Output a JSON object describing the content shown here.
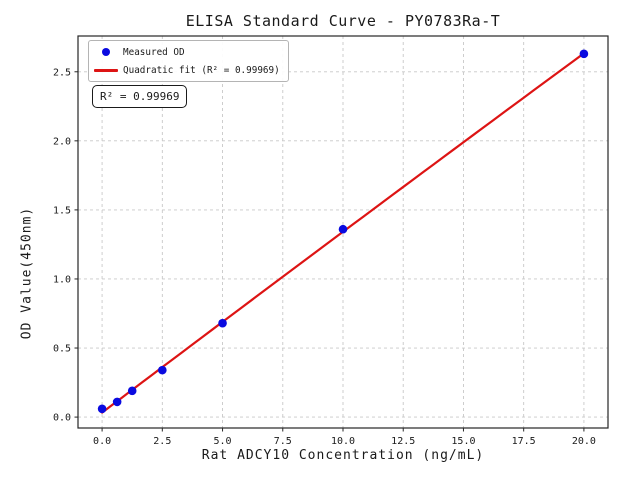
{
  "chart_data": {
    "type": "scatter",
    "title": "ELISA Standard Curve - PY0783Ra-T",
    "xlabel": "Rat ADCY10 Concentration (ng/mL)",
    "ylabel": "OD Value(450nm)",
    "annotation": "R² = 0.99969",
    "r_squared": 0.99969,
    "xlim": [
      -1,
      21
    ],
    "ylim": [
      -0.079,
      2.759
    ],
    "xticks": {
      "values": [
        0,
        2.5,
        5,
        7.5,
        10,
        12.5,
        15,
        17.5,
        20
      ],
      "labels": [
        "0.0",
        "2.5",
        "5.0",
        "7.5",
        "10.0",
        "12.5",
        "15.0",
        "17.5",
        "20.0"
      ]
    },
    "yticks": {
      "values": [
        0,
        0.5,
        1.0,
        1.5,
        2.0,
        2.5
      ],
      "labels": [
        "0.0",
        "0.5",
        "1.0",
        "1.5",
        "2.0",
        "2.5"
      ]
    },
    "grid": true,
    "grid_color": "#c8c8c8",
    "legend_position": "upper left",
    "series": [
      {
        "name": "Measured OD",
        "type": "scatter",
        "color": "#0a0ae0",
        "x": [
          0,
          0.625,
          1.25,
          2.5,
          5,
          10,
          20
        ],
        "y": [
          0.06,
          0.11,
          0.19,
          0.34,
          0.68,
          1.36,
          2.63
        ]
      },
      {
        "name": "Quadratic fit (R² = 0.99969)",
        "type": "quadratic-fit",
        "color": "#dd1414",
        "x_range": [
          0,
          20
        ]
      }
    ]
  },
  "legend": {
    "items": [
      {
        "label": "Measured OD",
        "marker": "dot",
        "color": "#0a0ae0"
      },
      {
        "label": "Quadratic fit (R² = 0.99969)",
        "marker": "line",
        "color": "#dd1414"
      }
    ]
  }
}
